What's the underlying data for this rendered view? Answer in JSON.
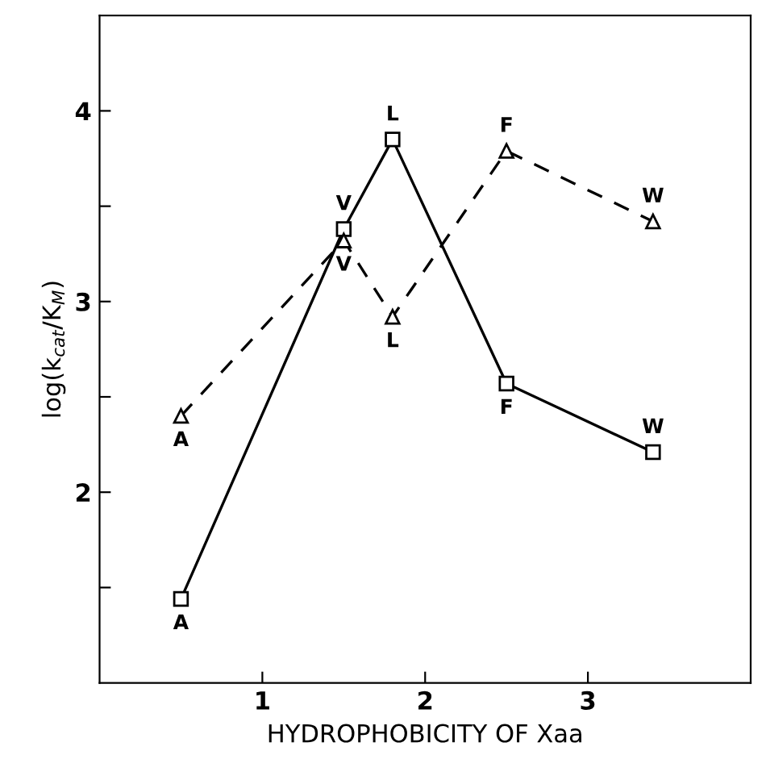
{
  "chart_data": {
    "type": "line",
    "xlabel": "HYDROPHOBICITY OF Xaa",
    "ylabel": "log(k$_{cat}$/K$_{M}$)",
    "x": [
      0.5,
      1.5,
      1.8,
      2.5,
      3.4
    ],
    "series": [
      {
        "color": "#000000",
        "values": [
          1.44,
          3.38,
          3.85,
          2.57,
          2.21
        ],
        "marker": "square",
        "line_style": "solid"
      },
      {
        "color": "#000000",
        "values": [
          2.4,
          3.32,
          2.92,
          3.79,
          3.42
        ],
        "marker": "triangle",
        "line_style": "dashed"
      }
    ],
    "xlim": [
      0,
      4
    ],
    "ylim": [
      1,
      4.5
    ],
    "xticks": [
      1,
      2,
      3
    ],
    "yticks": [
      {
        "value": 1.5,
        "label": null
      },
      2,
      {
        "value": 2.5,
        "label": null
      },
      3,
      {
        "value": 3.5,
        "label": null
      },
      4
    ],
    "grid": false,
    "legend": false,
    "annotations": [
      {
        "text": "A",
        "x": 0.5,
        "y": 1.44
      },
      {
        "text": "V",
        "x": 1.5,
        "y": 3.38
      },
      {
        "text": "L",
        "x": 1.8,
        "y": 3.85
      },
      {
        "text": "F",
        "x": 2.5,
        "y": 2.57
      },
      {
        "text": "W",
        "x": 3.4,
        "y": 2.21
      },
      {
        "text": "A",
        "x": 0.5,
        "y": 2.4
      },
      {
        "text": "V",
        "x": 1.5,
        "y": 3.32
      },
      {
        "text": "L",
        "x": 1.8,
        "y": 2.92
      },
      {
        "text": "F",
        "x": 2.5,
        "y": 3.79
      },
      {
        "text": "W",
        "x": 3.4,
        "y": 3.42
      }
    ]
  }
}
